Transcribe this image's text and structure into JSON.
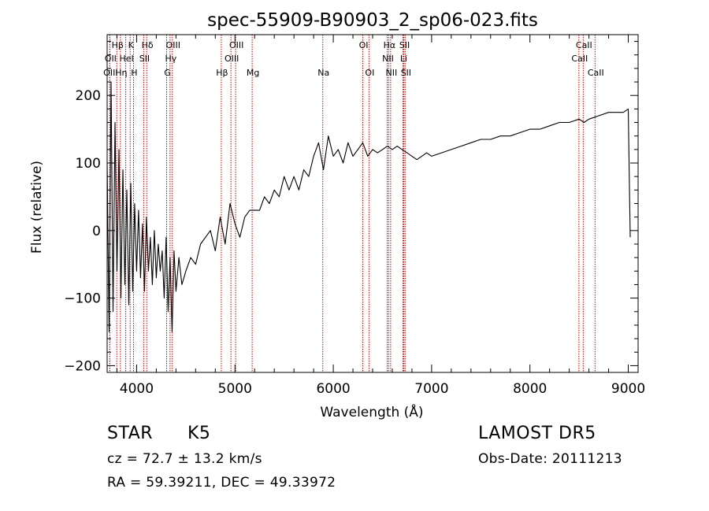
{
  "chart_data": {
    "type": "line",
    "title": "spec-55909-B90903_2_sp06-023.fits",
    "xlabel": "Wavelength (Å)",
    "ylabel": "Flux (relative)",
    "xlim": [
      3700,
      9100
    ],
    "ylim": [
      -210,
      290
    ],
    "xticks": [
      4000,
      5000,
      6000,
      7000,
      8000,
      9000
    ],
    "yticks": [
      -200,
      -100,
      0,
      100,
      200
    ],
    "grid": false,
    "line_color": "#000000",
    "marker_color": "#cc0000",
    "series": [
      {
        "x": [
          3700,
          3720,
          3740,
          3760,
          3780,
          3800,
          3820,
          3840,
          3860,
          3880,
          3900,
          3920,
          3940,
          3960,
          3980,
          4000,
          4020,
          4040,
          4060,
          4080,
          4100,
          4120,
          4140,
          4160,
          4180,
          4200,
          4220,
          4240,
          4260,
          4280,
          4300,
          4320,
          4340,
          4360,
          4380,
          4400,
          4430,
          4460,
          4500,
          4550,
          4600,
          4650,
          4700,
          4750,
          4800,
          4850,
          4900,
          4950,
          5000,
          5050,
          5100,
          5150,
          5200,
          5250,
          5300,
          5350,
          5400,
          5450,
          5500,
          5550,
          5600,
          5650,
          5700,
          5750,
          5800,
          5850,
          5900,
          5950,
          6000,
          6050,
          6100,
          6150,
          6200,
          6250,
          6300,
          6350,
          6400,
          6450,
          6500,
          6550,
          6600,
          6650,
          6700,
          6750,
          6800,
          6850,
          6900,
          6950,
          7000,
          7100,
          7200,
          7300,
          7400,
          7500,
          7600,
          7700,
          7800,
          7900,
          8000,
          8100,
          8200,
          8300,
          8400,
          8500,
          8550,
          8600,
          8700,
          8800,
          8900,
          8950,
          9000,
          9020
        ],
        "y": [
          100,
          -150,
          220,
          -120,
          160,
          -60,
          120,
          -100,
          90,
          -80,
          60,
          -110,
          70,
          -90,
          40,
          -60,
          30,
          -70,
          10,
          -90,
          20,
          -60,
          -10,
          -80,
          0,
          -70,
          -20,
          -60,
          -30,
          -100,
          -10,
          -120,
          -40,
          -150,
          -30,
          -90,
          -40,
          -80,
          -60,
          -40,
          -50,
          -20,
          -10,
          0,
          -30,
          20,
          -20,
          40,
          10,
          -10,
          20,
          30,
          30,
          30,
          50,
          40,
          60,
          50,
          80,
          60,
          80,
          60,
          90,
          80,
          110,
          130,
          90,
          140,
          110,
          120,
          100,
          130,
          110,
          120,
          130,
          110,
          120,
          115,
          120,
          125,
          120,
          125,
          120,
          115,
          110,
          105,
          110,
          115,
          110,
          115,
          120,
          125,
          130,
          135,
          135,
          140,
          140,
          145,
          150,
          150,
          155,
          160,
          160,
          165,
          160,
          165,
          170,
          175,
          175,
          175,
          180,
          -10
        ]
      }
    ],
    "line_markers": [
      {
        "label": "Hβ",
        "x": 3798,
        "row": 1
      },
      {
        "label": "K",
        "x": 3934,
        "row": 1
      },
      {
        "label": "Hδ",
        "x": 4102,
        "row": 1
      },
      {
        "label": "OIII",
        "x": 4363,
        "row": 1
      },
      {
        "label": "OIII",
        "x": 5007,
        "row": 1
      },
      {
        "label": "OI",
        "x": 6300,
        "row": 1
      },
      {
        "label": "Hα",
        "x": 6563,
        "row": 1
      },
      {
        "label": "SII",
        "x": 6717,
        "row": 1
      },
      {
        "label": "CaII",
        "x": 8542,
        "row": 1
      },
      {
        "label": "OII",
        "x": 3727,
        "row": 2
      },
      {
        "label": "HeI",
        "x": 3889,
        "row": 2
      },
      {
        "label": "SII",
        "x": 4072,
        "row": 2
      },
      {
        "label": "Hγ",
        "x": 4340,
        "row": 2
      },
      {
        "label": "OIII",
        "x": 4959,
        "row": 2
      },
      {
        "label": "NII",
        "x": 6548,
        "row": 2
      },
      {
        "label": "Li",
        "x": 6708,
        "row": 2
      },
      {
        "label": "CaII",
        "x": 8498,
        "row": 2
      },
      {
        "label": "OIII",
        "x": 3727,
        "row": 3
      },
      {
        "label": "Hη",
        "x": 3835,
        "row": 3
      },
      {
        "label": "H",
        "x": 3968,
        "row": 3
      },
      {
        "label": "G",
        "x": 4305,
        "row": 3
      },
      {
        "label": "Hβ",
        "x": 4861,
        "row": 3
      },
      {
        "label": "Mg",
        "x": 5175,
        "row": 3
      },
      {
        "label": "Na",
        "x": 5893,
        "row": 3
      },
      {
        "label": "OI",
        "x": 6363,
        "row": 3
      },
      {
        "label": "NII",
        "x": 6583,
        "row": 3
      },
      {
        "label": "SII",
        "x": 6731,
        "row": 3
      },
      {
        "label": "CaII",
        "x": 8662,
        "row": 3
      }
    ]
  },
  "info": {
    "object_class": "STAR",
    "subclass": "K5",
    "survey": "LAMOST DR5",
    "cz": "cz = 72.7 ± 13.2 km/s",
    "obs_date": "Obs-Date: 20111213",
    "coords": "RA =  59.39211, DEC =  49.33972"
  }
}
